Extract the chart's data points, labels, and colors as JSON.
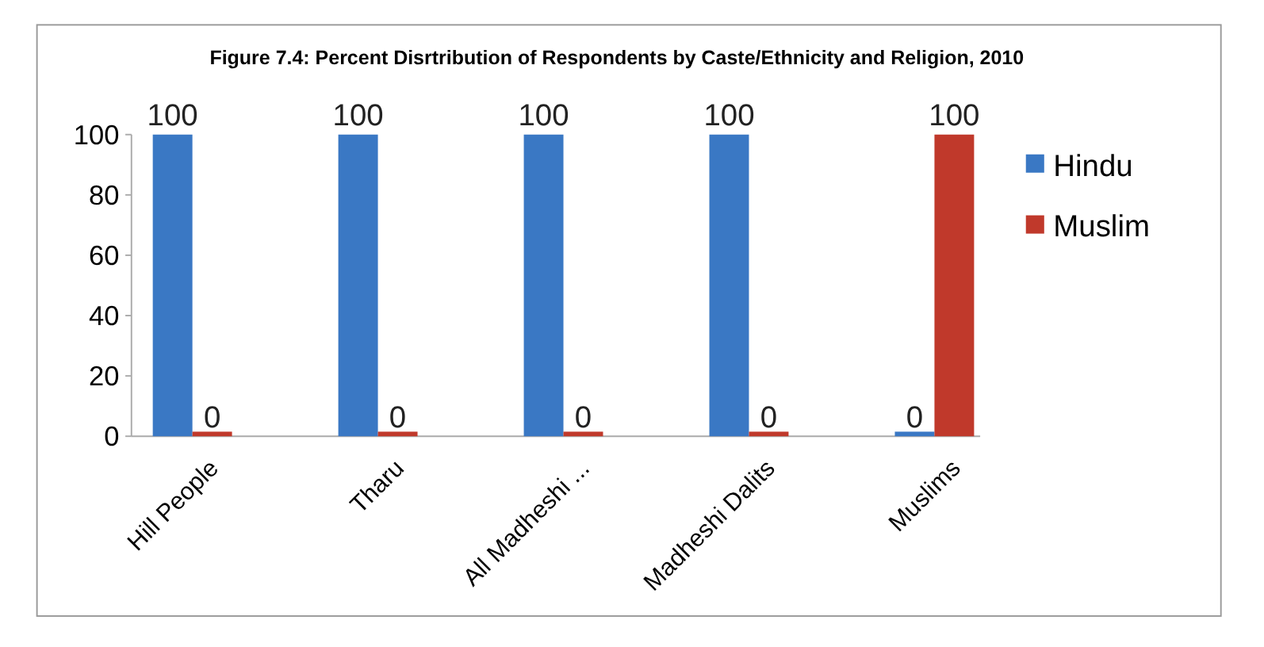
{
  "chart_data": {
    "type": "bar",
    "title": "Figure 7.4: Percent Disrtribution of Respondents by Caste/Ethnicity and Religion, 2010",
    "categories": [
      "Hill People",
      "Tharu",
      "All Madheshi ...",
      "Madheshi Dalits",
      "Muslims"
    ],
    "series": [
      {
        "name": "Hindu",
        "color": "#3a78c4",
        "values": [
          100,
          100,
          100,
          100,
          0
        ]
      },
      {
        "name": "Muslim",
        "color": "#c0392b",
        "values": [
          0,
          0,
          0,
          0,
          100
        ]
      }
    ],
    "ylim": [
      0,
      100
    ],
    "yticks": [
      0,
      20,
      40,
      60,
      80,
      100
    ],
    "grid": false,
    "legend": "right",
    "data_labels": true
  }
}
